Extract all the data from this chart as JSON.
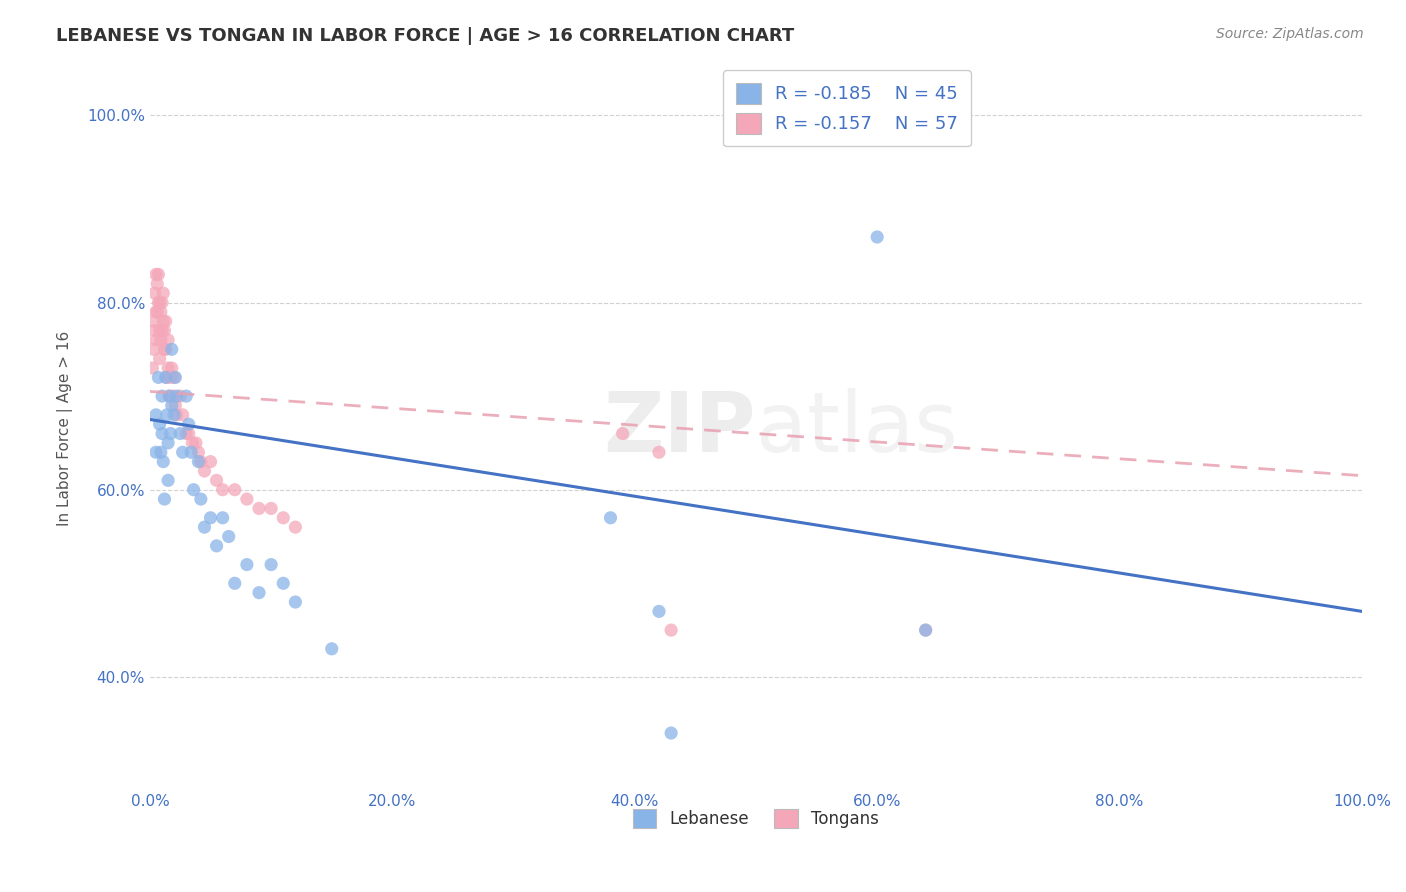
{
  "title": "LEBANESE VS TONGAN IN LABOR FORCE | AGE > 16 CORRELATION CHART",
  "source": "Source: ZipAtlas.com",
  "ylabel": "In Labor Force | Age > 16",
  "xlabel": "",
  "xlim": [
    0.0,
    1.0
  ],
  "ylim": [
    0.28,
    1.05
  ],
  "x_ticks": [
    0.0,
    0.2,
    0.4,
    0.6,
    0.8,
    1.0
  ],
  "x_tick_labels": [
    "0.0%",
    "20.0%",
    "40.0%",
    "60.0%",
    "80.0%",
    "100.0%"
  ],
  "y_ticks": [
    0.4,
    0.6,
    0.8,
    1.0
  ],
  "y_tick_labels": [
    "40.0%",
    "60.0%",
    "80.0%",
    "100.0%"
  ],
  "lebanese_color": "#89b4e8",
  "tongan_color": "#f4a7b9",
  "lebanese_line_color": "#4472c4",
  "tongan_line_color": "#e8a0b0",
  "legend_lebanese_label": "Lebanese",
  "legend_tongan_label": "Tongans",
  "R_lebanese": -0.185,
  "N_lebanese": 45,
  "R_tongan": -0.157,
  "N_tongan": 57,
  "watermark": "ZIPatlas",
  "background_color": "#ffffff",
  "grid_color": "#cccccc",
  "title_color": "#333333",
  "tick_color": "#4472c4",
  "lebanese_x": [
    0.005,
    0.005,
    0.007,
    0.008,
    0.009,
    0.01,
    0.01,
    0.011,
    0.012,
    0.013,
    0.014,
    0.015,
    0.015,
    0.016,
    0.017,
    0.018,
    0.018,
    0.02,
    0.021,
    0.022,
    0.025,
    0.027,
    0.03,
    0.032,
    0.034,
    0.036,
    0.04,
    0.042,
    0.045,
    0.05,
    0.055,
    0.06,
    0.065,
    0.07,
    0.08,
    0.09,
    0.1,
    0.11,
    0.12,
    0.15,
    0.38,
    0.42,
    0.43,
    0.6,
    0.64
  ],
  "lebanese_y": [
    0.68,
    0.64,
    0.72,
    0.67,
    0.64,
    0.7,
    0.66,
    0.63,
    0.59,
    0.72,
    0.68,
    0.65,
    0.61,
    0.7,
    0.66,
    0.75,
    0.69,
    0.68,
    0.72,
    0.7,
    0.66,
    0.64,
    0.7,
    0.67,
    0.64,
    0.6,
    0.63,
    0.59,
    0.56,
    0.57,
    0.54,
    0.57,
    0.55,
    0.5,
    0.52,
    0.49,
    0.52,
    0.5,
    0.48,
    0.43,
    0.57,
    0.47,
    0.34,
    0.87,
    0.45
  ],
  "tongan_x": [
    0.002,
    0.003,
    0.003,
    0.004,
    0.004,
    0.005,
    0.005,
    0.005,
    0.006,
    0.006,
    0.007,
    0.007,
    0.008,
    0.008,
    0.008,
    0.009,
    0.009,
    0.01,
    0.01,
    0.011,
    0.011,
    0.012,
    0.012,
    0.013,
    0.013,
    0.014,
    0.015,
    0.015,
    0.016,
    0.017,
    0.018,
    0.019,
    0.02,
    0.021,
    0.022,
    0.025,
    0.027,
    0.03,
    0.032,
    0.035,
    0.038,
    0.04,
    0.042,
    0.045,
    0.05,
    0.055,
    0.06,
    0.07,
    0.08,
    0.09,
    0.1,
    0.11,
    0.12,
    0.39,
    0.42,
    0.43,
    0.64
  ],
  "tongan_y": [
    0.73,
    0.78,
    0.75,
    0.81,
    0.77,
    0.83,
    0.79,
    0.76,
    0.82,
    0.79,
    0.83,
    0.8,
    0.8,
    0.77,
    0.74,
    0.79,
    0.76,
    0.8,
    0.77,
    0.81,
    0.78,
    0.77,
    0.75,
    0.78,
    0.75,
    0.72,
    0.76,
    0.73,
    0.7,
    0.72,
    0.73,
    0.7,
    0.72,
    0.69,
    0.68,
    0.7,
    0.68,
    0.66,
    0.66,
    0.65,
    0.65,
    0.64,
    0.63,
    0.62,
    0.63,
    0.61,
    0.6,
    0.6,
    0.59,
    0.58,
    0.58,
    0.57,
    0.56,
    0.66,
    0.64,
    0.45,
    0.45
  ]
}
